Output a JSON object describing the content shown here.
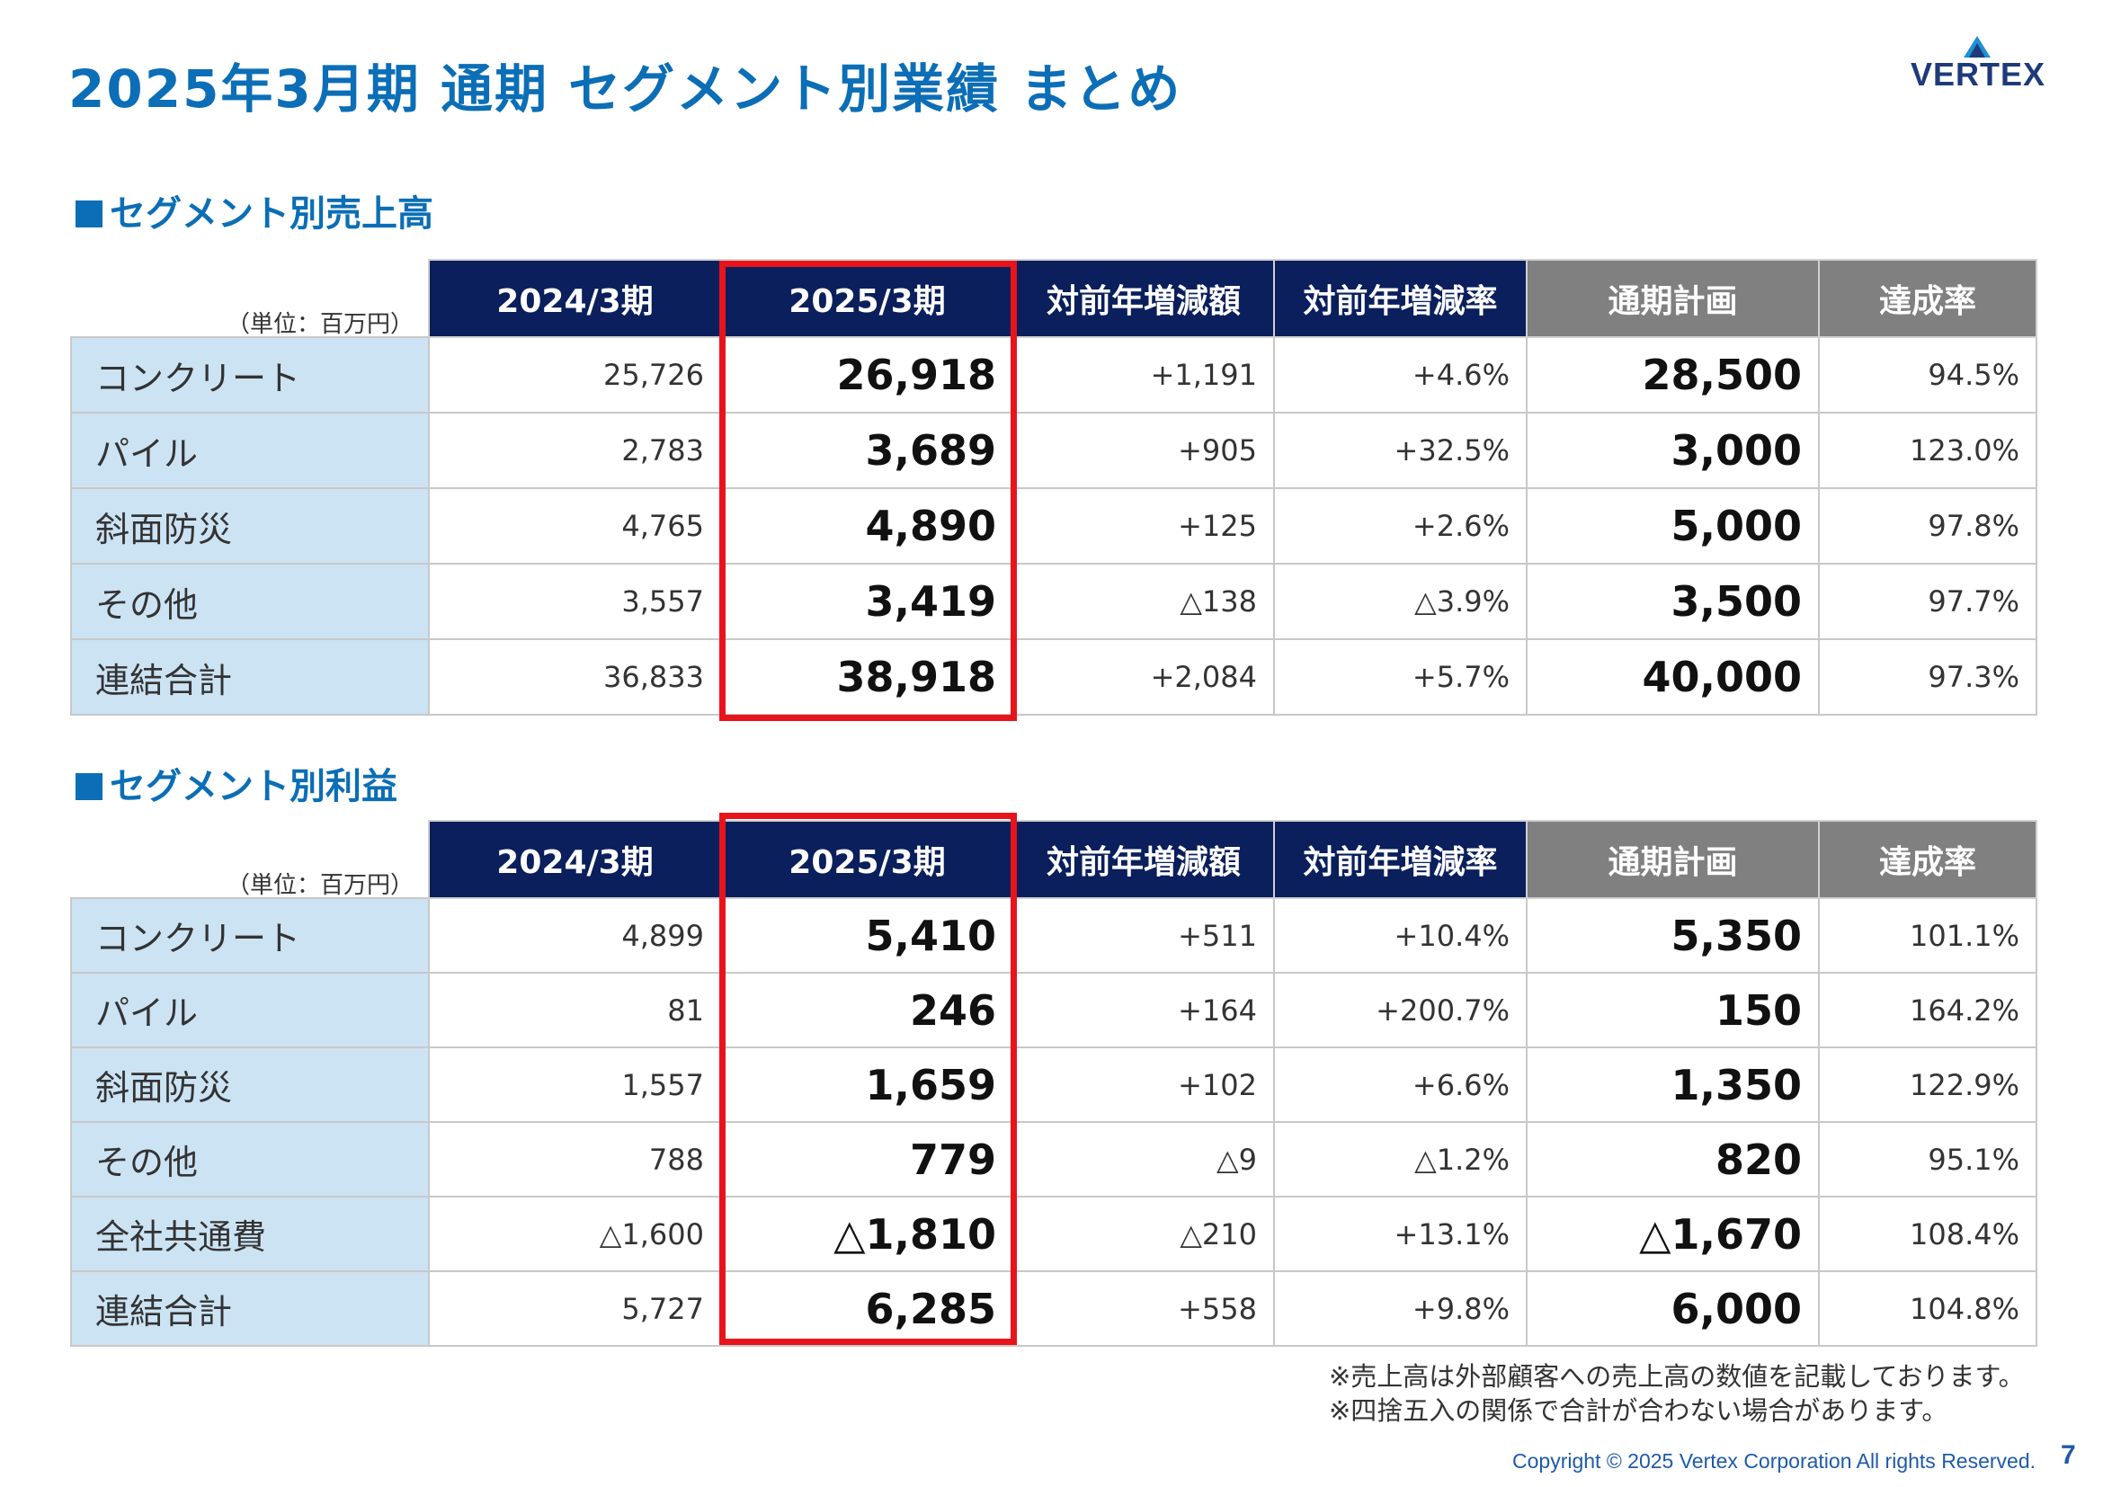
{
  "title": "2025年3月期 通期 セグメント別業績 まとめ",
  "logo": {
    "text": "VERTEX"
  },
  "columns": [
    "2024/3期",
    "2025/3期",
    "対前年増減額",
    "対前年増減率",
    "通期計画",
    "達成率"
  ],
  "unit_label": "（単位：百万円）",
  "sales": {
    "title": "セグメント別売上高",
    "rows": [
      {
        "label": "コンクリート",
        "values": [
          "25,726",
          "26,918",
          "+1,191",
          "+4.6%",
          "28,500",
          "94.5%"
        ]
      },
      {
        "label": "パイル",
        "values": [
          "2,783",
          "3,689",
          "+905",
          "+32.5%",
          "3,000",
          "123.0%"
        ]
      },
      {
        "label": "斜面防災",
        "values": [
          "4,765",
          "4,890",
          "+125",
          "+2.6%",
          "5,000",
          "97.8%"
        ]
      },
      {
        "label": "その他",
        "values": [
          "3,557",
          "3,419",
          "△138",
          "△3.9%",
          "3,500",
          "97.7%"
        ]
      },
      {
        "label": "連結合計",
        "values": [
          "36,833",
          "38,918",
          "+2,084",
          "+5.7%",
          "40,000",
          "97.3%"
        ]
      }
    ]
  },
  "profit": {
    "title": "セグメント別利益",
    "rows": [
      {
        "label": "コンクリート",
        "values": [
          "4,899",
          "5,410",
          "+511",
          "+10.4%",
          "5,350",
          "101.1%"
        ]
      },
      {
        "label": "パイル",
        "values": [
          "81",
          "246",
          "+164",
          "+200.7%",
          "150",
          "164.2%"
        ]
      },
      {
        "label": "斜面防災",
        "values": [
          "1,557",
          "1,659",
          "+102",
          "+6.6%",
          "1,350",
          "122.9%"
        ]
      },
      {
        "label": "その他",
        "values": [
          "788",
          "779",
          "△9",
          "△1.2%",
          "820",
          "95.1%"
        ]
      },
      {
        "label": "全社共通費",
        "values": [
          "△1,600",
          "△1,810",
          "△210",
          "+13.1%",
          "△1,670",
          "108.4%"
        ]
      },
      {
        "label": "連結合計",
        "values": [
          "5,727",
          "6,285",
          "+558",
          "+9.8%",
          "6,000",
          "104.8%"
        ]
      }
    ]
  },
  "notes": [
    "※売上高は外部顧客への売上高の数値を記載しております。",
    "※四捨五入の関係で合計が合わない場合があります。"
  ],
  "copyright": "Copyright © 2025 Vertex Corporation All rights Reserved.",
  "page_number": "7",
  "colors": {
    "title_blue": "#0b6eb6",
    "header_navy": "#0a1f5c",
    "header_grey": "#808080",
    "label_bg": "#cce3f4",
    "highlight_red": "#e8141c"
  }
}
